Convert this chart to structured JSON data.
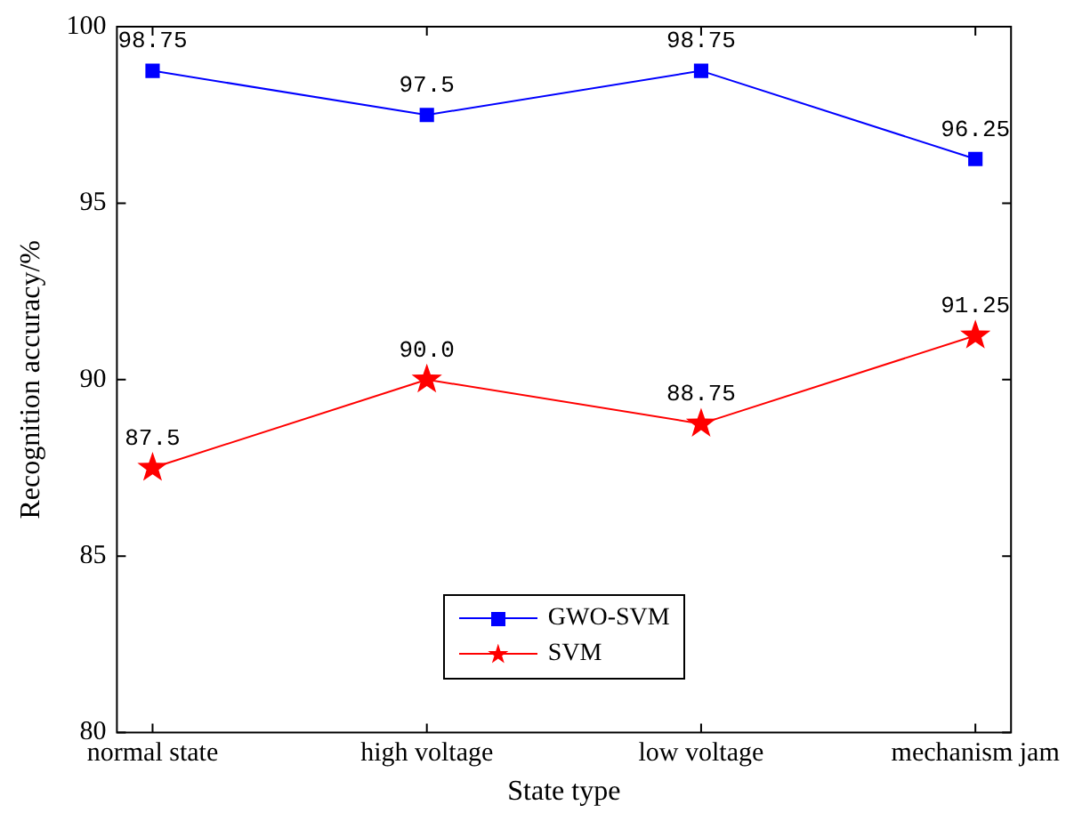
{
  "chart_data": {
    "type": "line",
    "xlabel": "State type",
    "ylabel": "Recognition accuracy/%",
    "categories": [
      "normal state",
      "high voltage",
      "low voltage",
      "mechanism jam"
    ],
    "series": [
      {
        "name": "GWO-SVM",
        "color": "#0000ff",
        "marker": "square",
        "values": [
          98.75,
          97.5,
          98.75,
          96.25
        ],
        "value_labels": [
          "98.75",
          "97.5",
          "98.75",
          "96.25"
        ]
      },
      {
        "name": "SVM",
        "color": "#ff0000",
        "marker": "star",
        "values": [
          87.5,
          90.0,
          88.75,
          91.25
        ],
        "value_labels": [
          "87.5",
          "90.0",
          "88.75",
          "91.25"
        ]
      }
    ],
    "ylim": [
      80,
      100
    ],
    "yticks": [
      80,
      85,
      90,
      95,
      100
    ],
    "grid": false,
    "legend": "bottom"
  }
}
